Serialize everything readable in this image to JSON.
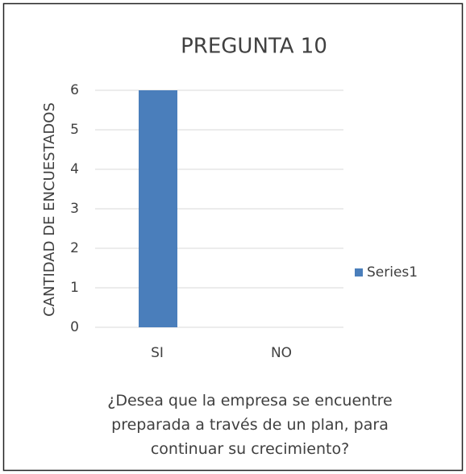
{
  "chart_data": {
    "type": "bar",
    "title": "PREGUNTA 10",
    "categories": [
      "SI",
      "NO"
    ],
    "series": [
      {
        "name": "Series1",
        "color": "#4a7ebb",
        "values": [
          6,
          0
        ]
      }
    ],
    "ylabel": "CANTIDAD DE ENCUESTADOS",
    "xlabel": "¿Desea que la empresa se encuentre preparada a través de un plan, para continuar su crecimiento?",
    "ylim": [
      0,
      6
    ],
    "yticks": [
      0,
      1,
      2,
      3,
      4,
      5,
      6
    ],
    "grid": true,
    "legend": "right"
  }
}
